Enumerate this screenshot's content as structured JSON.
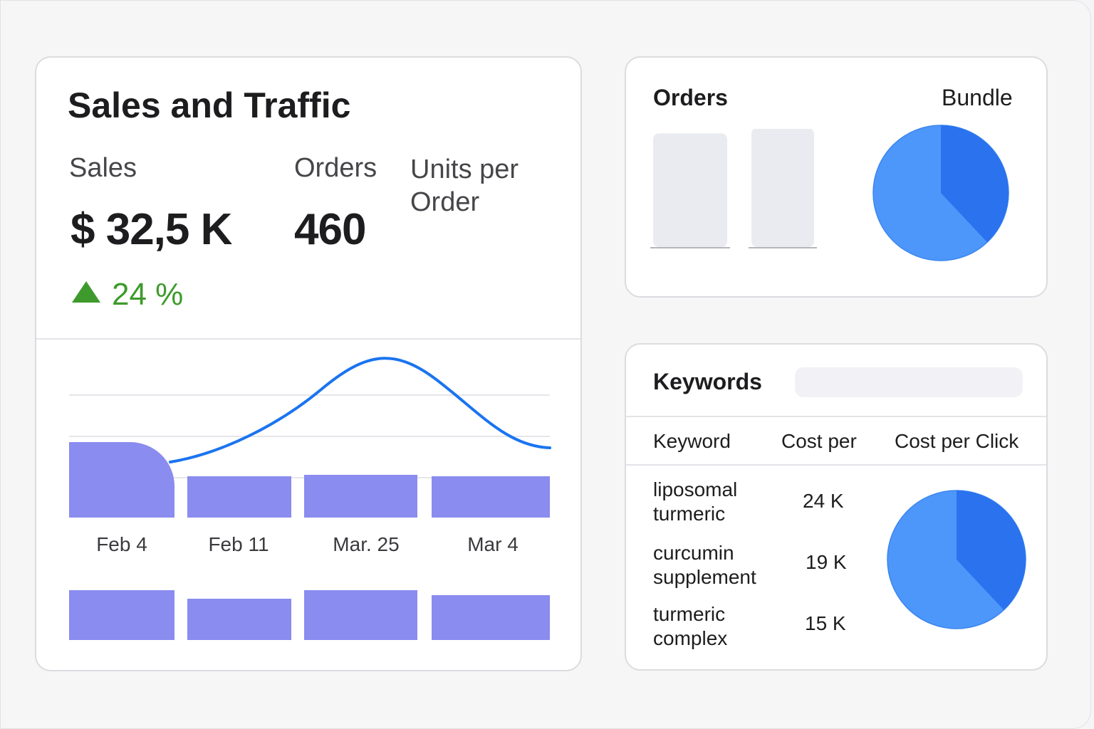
{
  "sales_traffic": {
    "title": "Sales and Traffic",
    "kpis": {
      "sales_label": "Sales",
      "sales_value": "$ 32,5 K",
      "sales_delta": "24 %",
      "orders_label": "Orders",
      "orders_value": "460",
      "units_label_line1": "Units per",
      "units_label_line2": "Order"
    },
    "chart_data": {
      "type": "bar",
      "categories": [
        "Feb 4",
        "Feb 11",
        "Mar. 25",
        "Mar 4"
      ],
      "series": [
        {
          "values": [
            1.06,
            0.58,
            0.6,
            0.58
          ]
        },
        {
          "values": [
            0.7,
            0.58,
            0.7,
            0.63
          ]
        }
      ],
      "line": {
        "values": [
          0.75,
          1.2,
          2.15,
          1.0
        ]
      },
      "grid": true,
      "colors": {
        "bars": "#8a8cef",
        "line": "#1a74f0"
      }
    }
  },
  "orders": {
    "title": "Orders",
    "bundle_label": "Bundle",
    "chart_data": {
      "type": "pie",
      "values": [
        62,
        38
      ],
      "colors": [
        "#4d97fb",
        "#2a72ee"
      ]
    },
    "placeholder_bars": [
      0.84,
      0.88
    ]
  },
  "keywords": {
    "title": "Keywords",
    "headers": [
      "Keyword",
      "Cost per",
      "Cost per Click"
    ],
    "rows": [
      {
        "keyword": "liposomal turmeric",
        "cost": "24 K"
      },
      {
        "keyword": "curcumin supplement",
        "cost": "19 K"
      },
      {
        "keyword": "turmeric complex",
        "cost": "15 K"
      }
    ],
    "chart_data": {
      "type": "pie",
      "values": [
        62,
        38
      ],
      "colors": [
        "#4d97fb",
        "#2a72ee"
      ]
    }
  },
  "colors": {
    "positive": "#3e9a2c",
    "accent": "#1a74f0"
  },
  "icons": {
    "trend_up": "triangle-up-icon"
  }
}
